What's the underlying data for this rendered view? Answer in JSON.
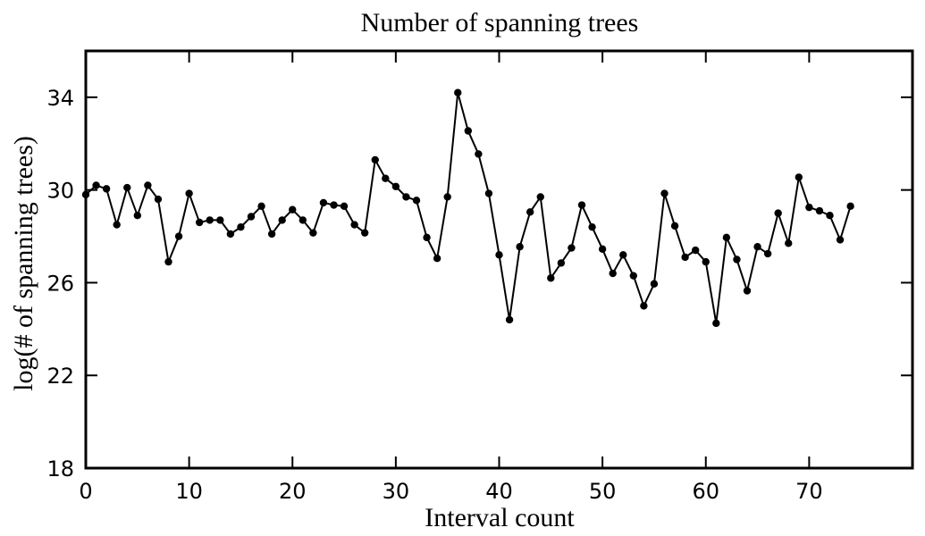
{
  "chart_data": {
    "type": "line",
    "title": "Number of spanning trees",
    "xlabel": "Interval count",
    "ylabel": "log(# of spanning trees)",
    "xlim": [
      0,
      80
    ],
    "ylim": [
      18,
      36
    ],
    "xticks": [
      0,
      10,
      20,
      30,
      40,
      50,
      60,
      70
    ],
    "yticks": [
      18,
      22,
      26,
      30,
      34
    ],
    "grid": false,
    "marker": "circle",
    "color": "#000000",
    "series": [
      {
        "x": [
          0,
          1,
          2,
          3,
          4,
          5,
          6,
          7,
          8,
          9,
          10,
          11,
          12,
          13,
          14,
          15,
          16,
          17,
          18,
          19,
          20,
          21,
          22,
          23,
          24,
          25,
          26,
          27,
          28,
          29,
          30,
          31,
          32,
          33,
          34,
          35,
          36,
          37,
          38,
          39,
          40,
          41,
          42,
          43,
          44,
          45,
          46,
          47,
          48,
          49,
          50,
          51,
          52,
          53,
          54,
          55,
          56,
          57,
          58,
          59,
          60,
          61,
          62,
          63,
          64,
          65,
          66,
          67,
          68,
          69,
          70,
          71,
          72,
          73,
          74
        ],
        "y": [
          29.8,
          30.2,
          30.05,
          28.5,
          30.1,
          28.9,
          30.2,
          29.6,
          26.9,
          28.0,
          29.85,
          28.6,
          28.7,
          28.7,
          28.1,
          28.4,
          28.85,
          29.3,
          28.1,
          28.7,
          29.15,
          28.7,
          28.15,
          29.45,
          29.35,
          29.3,
          28.5,
          28.15,
          31.3,
          30.5,
          30.15,
          29.7,
          29.55,
          27.95,
          27.05,
          29.7,
          34.2,
          32.55,
          31.55,
          29.85,
          27.2,
          24.4,
          27.55,
          29.05,
          29.7,
          26.2,
          26.85,
          27.5,
          29.35,
          28.4,
          27.45,
          26.4,
          27.2,
          26.3,
          25.0,
          25.95,
          29.85,
          28.45,
          27.1,
          27.4,
          26.9,
          24.25,
          27.95,
          27.0,
          25.65,
          27.55,
          27.25,
          29.0,
          27.7,
          30.55,
          29.25,
          29.1,
          28.9,
          27.85,
          29.3
        ]
      }
    ]
  }
}
